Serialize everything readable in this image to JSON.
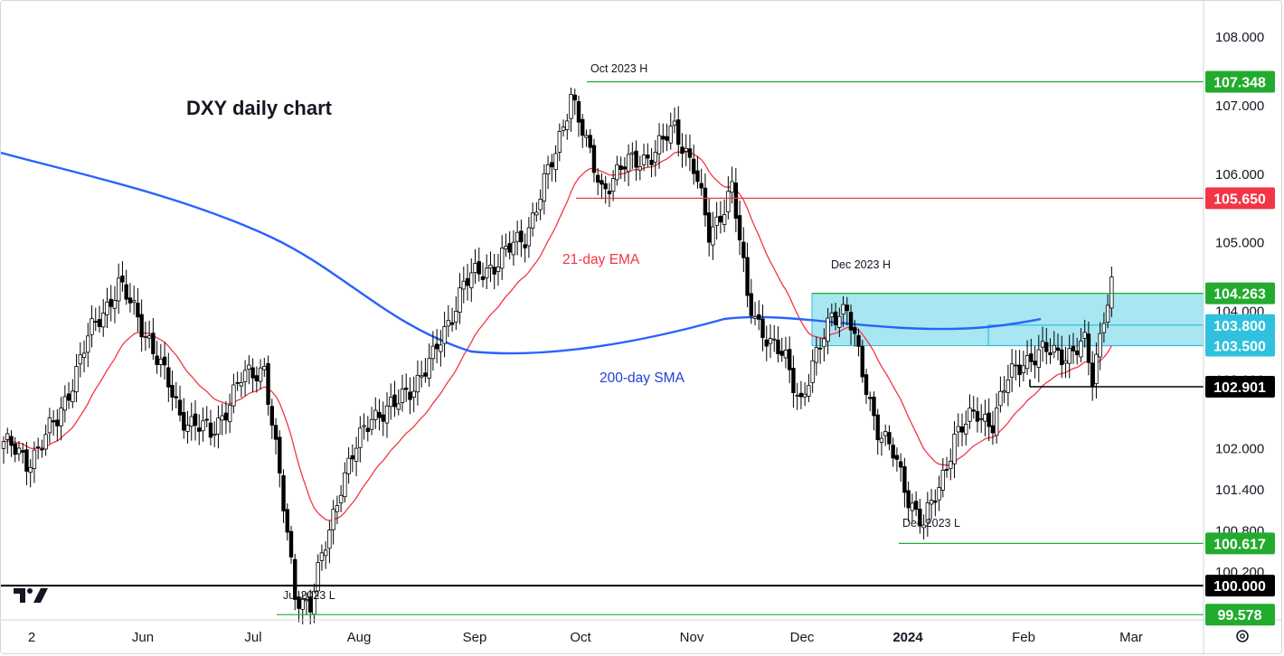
{
  "chart_data": {
    "type": "candlestick",
    "title": "DXY daily chart",
    "x_months": [
      "2",
      "Jun",
      "Jul",
      "Aug",
      "Sep",
      "Oct",
      "Nov",
      "Dec",
      "2024",
      "Feb",
      "Mar"
    ],
    "y_ticks": [
      "108.000",
      "107.000",
      "106.000",
      "105.000",
      "104.000",
      "103.000",
      "102.000",
      "101.400",
      "100.800",
      "100.200"
    ],
    "ylim": [
      99.25,
      108.45
    ],
    "price_levels": [
      {
        "value": 107.348,
        "label": "107.348",
        "color": "#22ab2f",
        "annotation": "Oct 2023 H"
      },
      {
        "value": 105.65,
        "label": "105.650",
        "color": "#f23645",
        "annotation": ""
      },
      {
        "value": 104.263,
        "label": "104.263",
        "color": "#22ab2f",
        "annotation": "Dec 2023 H"
      },
      {
        "value": 103.8,
        "label": "103.800",
        "color": "#2fc1dd",
        "annotation": ""
      },
      {
        "value": 103.5,
        "label": "103.500",
        "color": "#2fc1dd",
        "annotation": ""
      },
      {
        "value": 102.901,
        "label": "102.901",
        "color": "#000000",
        "annotation": ""
      },
      {
        "value": 100.617,
        "label": "100.617",
        "color": "#22ab2f",
        "annotation": "Dec 2023 L"
      },
      {
        "value": 100.0,
        "label": "100.000",
        "color": "#000000",
        "annotation": ""
      },
      {
        "value": 99.578,
        "label": "99.578",
        "color": "#22ab2f",
        "annotation": "Jul 2023 L"
      }
    ],
    "zone": {
      "from": 103.5,
      "to": 104.263,
      "color": "#92e0ee"
    },
    "ema_label": "21-day EMA",
    "sma_label": "200-day SMA",
    "ema_color": "#f23645",
    "sma_color": "#2962ff",
    "candle_color": "#000000",
    "close_anchors": [
      {
        "d": 0,
        "c": 102.1
      },
      {
        "d": 6,
        "c": 101.8
      },
      {
        "d": 14,
        "c": 102.4
      },
      {
        "d": 22,
        "c": 103.6
      },
      {
        "d": 30,
        "c": 104.4
      },
      {
        "d": 38,
        "c": 103.6
      },
      {
        "d": 46,
        "c": 102.5
      },
      {
        "d": 54,
        "c": 102.2
      },
      {
        "d": 62,
        "c": 103.0
      },
      {
        "d": 68,
        "c": 103.2
      },
      {
        "d": 76,
        "c": 99.9
      },
      {
        "d": 80,
        "c": 99.7
      },
      {
        "d": 88,
        "c": 101.5
      },
      {
        "d": 96,
        "c": 102.5
      },
      {
        "d": 102,
        "c": 102.6
      },
      {
        "d": 112,
        "c": 103.3
      },
      {
        "d": 120,
        "c": 104.4
      },
      {
        "d": 128,
        "c": 104.7
      },
      {
        "d": 136,
        "c": 105.1
      },
      {
        "d": 144,
        "c": 106.3
      },
      {
        "d": 148,
        "c": 107.2
      },
      {
        "d": 152,
        "c": 106.4
      },
      {
        "d": 156,
        "c": 105.8
      },
      {
        "d": 164,
        "c": 106.2
      },
      {
        "d": 170,
        "c": 106.3
      },
      {
        "d": 175,
        "c": 106.7
      },
      {
        "d": 180,
        "c": 106.1
      },
      {
        "d": 184,
        "c": 105.1
      },
      {
        "d": 190,
        "c": 105.8
      },
      {
        "d": 194,
        "c": 104.2
      },
      {
        "d": 200,
        "c": 103.5
      },
      {
        "d": 204,
        "c": 103.3
      },
      {
        "d": 208,
        "c": 102.7
      },
      {
        "d": 212,
        "c": 103.3
      },
      {
        "d": 216,
        "c": 104.0
      },
      {
        "d": 220,
        "c": 104.0
      },
      {
        "d": 224,
        "c": 103.1
      },
      {
        "d": 228,
        "c": 102.3
      },
      {
        "d": 232,
        "c": 101.9
      },
      {
        "d": 236,
        "c": 101.3
      },
      {
        "d": 240,
        "c": 100.9
      },
      {
        "d": 244,
        "c": 101.4
      },
      {
        "d": 248,
        "c": 102.2
      },
      {
        "d": 254,
        "c": 102.5
      },
      {
        "d": 258,
        "c": 102.4
      },
      {
        "d": 262,
        "c": 103.0
      },
      {
        "d": 266,
        "c": 103.3
      },
      {
        "d": 272,
        "c": 103.4
      },
      {
        "d": 278,
        "c": 103.4
      },
      {
        "d": 282,
        "c": 103.5
      },
      {
        "d": 284,
        "c": 103.0
      },
      {
        "d": 287,
        "c": 104.0
      },
      {
        "d": 289,
        "c": 104.4
      }
    ]
  },
  "branding": {
    "logo_text": "17"
  }
}
